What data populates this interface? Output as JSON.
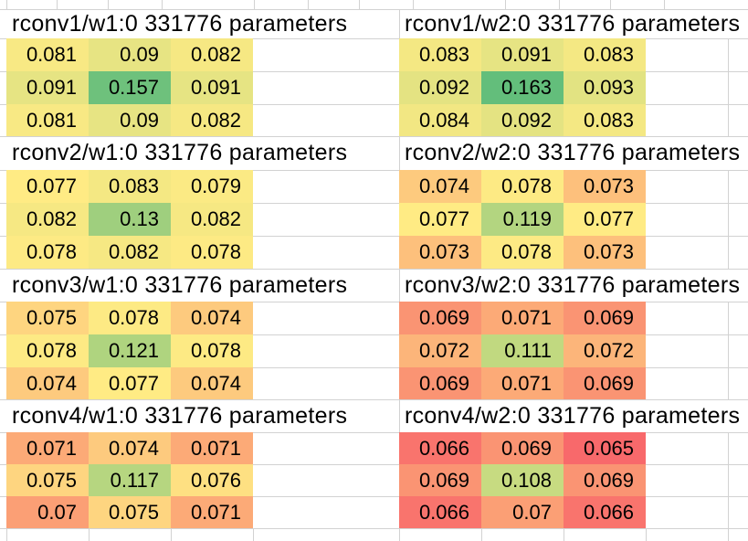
{
  "sheet": {
    "background": "#ffffff",
    "gridline_color": "#d2d2d2",
    "text_color": "#000000",
    "color_scale": {
      "min": 0.065,
      "mid": 0.077,
      "max": 0.163,
      "min_color": "#F8696B",
      "mid_color": "#FFEB84",
      "max_color": "#63BE7B"
    },
    "blocks": [
      {
        "title": "rconv1/w1:0 331776 parameters",
        "values": [
          [
            "0.081",
            "0.09",
            "0.082"
          ],
          [
            "0.091",
            "0.157",
            "0.091"
          ],
          [
            "0.081",
            "0.09",
            "0.082"
          ]
        ]
      },
      {
        "title": "rconv1/w2:0 331776 parameters",
        "values": [
          [
            "0.083",
            "0.091",
            "0.083"
          ],
          [
            "0.092",
            "0.163",
            "0.093"
          ],
          [
            "0.084",
            "0.092",
            "0.083"
          ]
        ]
      },
      {
        "title": "rconv2/w1:0 331776 parameters",
        "values": [
          [
            "0.077",
            "0.083",
            "0.079"
          ],
          [
            "0.082",
            "0.13",
            "0.082"
          ],
          [
            "0.078",
            "0.082",
            "0.078"
          ]
        ]
      },
      {
        "title": "rconv2/w2:0 331776 parameters",
        "values": [
          [
            "0.074",
            "0.078",
            "0.073"
          ],
          [
            "0.077",
            "0.119",
            "0.077"
          ],
          [
            "0.073",
            "0.078",
            "0.073"
          ]
        ]
      },
      {
        "title": "rconv3/w1:0 331776 parameters",
        "values": [
          [
            "0.075",
            "0.078",
            "0.074"
          ],
          [
            "0.078",
            "0.121",
            "0.078"
          ],
          [
            "0.074",
            "0.077",
            "0.074"
          ]
        ]
      },
      {
        "title": "rconv3/w2:0 331776 parameters",
        "values": [
          [
            "0.069",
            "0.071",
            "0.069"
          ],
          [
            "0.072",
            "0.111",
            "0.072"
          ],
          [
            "0.069",
            "0.071",
            "0.069"
          ]
        ]
      },
      {
        "title": "rconv4/w1:0 331776 parameters",
        "values": [
          [
            "0.071",
            "0.074",
            "0.071"
          ],
          [
            "0.075",
            "0.117",
            "0.076"
          ],
          [
            "0.07",
            "0.075",
            "0.071"
          ]
        ]
      },
      {
        "title": "rconv4/w2:0 331776 parameters",
        "values": [
          [
            "0.066",
            "0.069",
            "0.065"
          ],
          [
            "0.069",
            "0.108",
            "0.069"
          ],
          [
            "0.066",
            "0.07",
            "0.066"
          ]
        ]
      }
    ]
  },
  "chart_data": [
    {
      "type": "heatmap",
      "title": "rconv1/w1:0 331776 parameters",
      "colormap": "red-yellow-green",
      "values": [
        [
          0.081,
          0.09,
          0.082
        ],
        [
          0.091,
          0.157,
          0.091
        ],
        [
          0.081,
          0.09,
          0.082
        ]
      ]
    },
    {
      "type": "heatmap",
      "title": "rconv1/w2:0 331776 parameters",
      "colormap": "red-yellow-green",
      "values": [
        [
          0.083,
          0.091,
          0.083
        ],
        [
          0.092,
          0.163,
          0.093
        ],
        [
          0.084,
          0.092,
          0.083
        ]
      ]
    },
    {
      "type": "heatmap",
      "title": "rconv2/w1:0 331776 parameters",
      "colormap": "red-yellow-green",
      "values": [
        [
          0.077,
          0.083,
          0.079
        ],
        [
          0.082,
          0.13,
          0.082
        ],
        [
          0.078,
          0.082,
          0.078
        ]
      ]
    },
    {
      "type": "heatmap",
      "title": "rconv2/w2:0 331776 parameters",
      "colormap": "red-yellow-green",
      "values": [
        [
          0.074,
          0.078,
          0.073
        ],
        [
          0.077,
          0.119,
          0.077
        ],
        [
          0.073,
          0.078,
          0.073
        ]
      ]
    },
    {
      "type": "heatmap",
      "title": "rconv3/w1:0 331776 parameters",
      "colormap": "red-yellow-green",
      "values": [
        [
          0.075,
          0.078,
          0.074
        ],
        [
          0.078,
          0.121,
          0.078
        ],
        [
          0.074,
          0.077,
          0.074
        ]
      ]
    },
    {
      "type": "heatmap",
      "title": "rconv3/w2:0 331776 parameters",
      "colormap": "red-yellow-green",
      "values": [
        [
          0.069,
          0.071,
          0.069
        ],
        [
          0.072,
          0.111,
          0.072
        ],
        [
          0.069,
          0.071,
          0.069
        ]
      ]
    },
    {
      "type": "heatmap",
      "title": "rconv4/w1:0 331776 parameters",
      "colormap": "red-yellow-green",
      "values": [
        [
          0.071,
          0.074,
          0.071
        ],
        [
          0.075,
          0.117,
          0.076
        ],
        [
          0.07,
          0.075,
          0.071
        ]
      ]
    },
    {
      "type": "heatmap",
      "title": "rconv4/w2:0 331776 parameters",
      "colormap": "red-yellow-green",
      "values": [
        [
          0.066,
          0.069,
          0.065
        ],
        [
          0.069,
          0.108,
          0.069
        ],
        [
          0.066,
          0.07,
          0.066
        ]
      ]
    }
  ]
}
